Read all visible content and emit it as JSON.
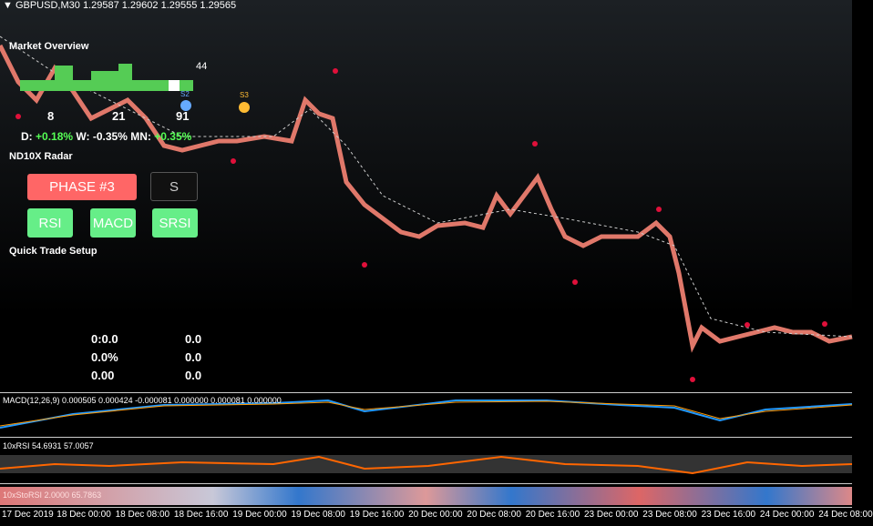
{
  "header": {
    "symbol": "GBPUSD,M30",
    "quote": "1.29587 1.29602 1.29555 1.29565"
  },
  "overview": {
    "title": "Market Overview",
    "count": "44",
    "stats": [
      "8",
      "21",
      "91"
    ],
    "markers": [
      "S2",
      "S3"
    ],
    "changes": [
      {
        "label": "D:",
        "value": "+0.18%"
      },
      {
        "label": "W:",
        "value": "-0.35%"
      },
      {
        "label": "MN:",
        "value": "+0.35%"
      }
    ]
  },
  "radar": {
    "title": "ND10X Radar",
    "phase": "PHASE #3",
    "signal": "S",
    "buttons": [
      "RSI",
      "MACD",
      "SRSI"
    ]
  },
  "trade": {
    "title": "Quick Trade Setup",
    "rows": [
      [
        "0:0.0",
        "0.0"
      ],
      [
        "0.0%",
        "0.0"
      ],
      [
        "0.00",
        "0.0"
      ]
    ]
  },
  "indicators": {
    "macd": "MACD(12,26,9) 0.000505 0.000424 -0.000081 0.000000 0.000081 0.000000",
    "rsi": "10xRSI 54.6931 57.0057",
    "stochrsi": "10xStoRSI 2.0000 65.7863"
  },
  "time_axis": [
    "17 Dec 2019",
    "18 Dec 00:00",
    "18 Dec 08:00",
    "18 Dec 16:00",
    "19 Dec 00:00",
    "19 Dec 08:00",
    "19 Dec 16:00",
    "20 Dec 00:00",
    "20 Dec 08:00",
    "20 Dec 16:00",
    "23 Dec 00:00",
    "23 Dec 08:00",
    "23 Dec 16:00",
    "24 Dec 00:00",
    "24 Dec 08:00"
  ]
}
